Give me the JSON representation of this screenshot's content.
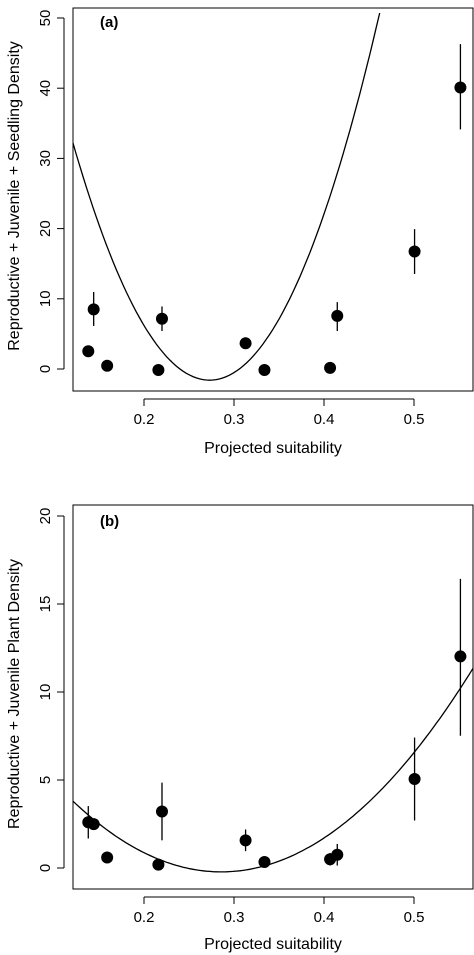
{
  "chart_data": [
    {
      "type": "scatter",
      "panel_label": "(a)",
      "xlabel": "Projected suitability",
      "ylabel": "Reproductive + Juvenile + Seedling Density",
      "xlim": [
        0.13,
        0.575
      ],
      "ylim": [
        -2,
        51
      ],
      "xticks": [
        "0.2",
        "0.3",
        "0.4",
        "0.5"
      ],
      "yticks": [
        "0",
        "10",
        "20",
        "30",
        "40",
        "50"
      ],
      "points": [
        {
          "x": 0.147,
          "y": 3.5,
          "lo": null,
          "hi": null
        },
        {
          "x": 0.153,
          "y": 9.3,
          "lo": 7.0,
          "hi": 11.7
        },
        {
          "x": 0.168,
          "y": 1.5,
          "lo": null,
          "hi": null
        },
        {
          "x": 0.225,
          "y": 0.9,
          "lo": null,
          "hi": null
        },
        {
          "x": 0.229,
          "y": 8.0,
          "lo": 6.3,
          "hi": 9.7
        },
        {
          "x": 0.322,
          "y": 4.6,
          "lo": null,
          "hi": null
        },
        {
          "x": 0.343,
          "y": 0.9,
          "lo": null,
          "hi": null
        },
        {
          "x": 0.416,
          "y": 1.2,
          "lo": null,
          "hi": null
        },
        {
          "x": 0.424,
          "y": 8.4,
          "lo": 6.3,
          "hi": 10.3
        },
        {
          "x": 0.51,
          "y": 17.3,
          "lo": 14.2,
          "hi": 20.4
        },
        {
          "x": 0.561,
          "y": 40.0,
          "lo": 34.2,
          "hi": 46.0
        }
      ],
      "fit": {
        "type": "quadratic",
        "vertex_x": 0.282,
        "vertex_y": -0.5,
        "a": 1420,
        "x_range": [
          0.13,
          0.575
        ]
      }
    },
    {
      "type": "scatter",
      "panel_label": "(b)",
      "xlabel": "Projected suitability",
      "ylabel": "Reproductive + Juvenile Plant Density",
      "xlim": [
        0.13,
        0.575
      ],
      "ylim": [
        -0.7,
        20.6
      ],
      "xticks": [
        "0.2",
        "0.3",
        "0.4",
        "0.5"
      ],
      "yticks": [
        "0",
        "5",
        "10",
        "15",
        "20"
      ],
      "points": [
        {
          "x": 0.147,
          "y": 3.0,
          "lo": 2.1,
          "hi": 3.9
        },
        {
          "x": 0.153,
          "y": 2.9,
          "lo": null,
          "hi": null
        },
        {
          "x": 0.168,
          "y": 1.05,
          "lo": null,
          "hi": null
        },
        {
          "x": 0.225,
          "y": 0.65,
          "lo": null,
          "hi": null
        },
        {
          "x": 0.229,
          "y": 3.6,
          "lo": 2.0,
          "hi": 5.2
        },
        {
          "x": 0.322,
          "y": 2.0,
          "lo": 1.4,
          "hi": 2.6
        },
        {
          "x": 0.343,
          "y": 0.8,
          "lo": null,
          "hi": null
        },
        {
          "x": 0.416,
          "y": 0.95,
          "lo": 0.6,
          "hi": 1.3
        },
        {
          "x": 0.424,
          "y": 1.2,
          "lo": 0.6,
          "hi": 1.8
        },
        {
          "x": 0.51,
          "y": 5.4,
          "lo": 3.1,
          "hi": 7.7
        },
        {
          "x": 0.561,
          "y": 12.2,
          "lo": 7.8,
          "hi": 16.5
        }
      ],
      "fit": {
        "type": "quadratic",
        "vertex_x": 0.295,
        "vertex_y": 0.25,
        "a": 144,
        "x_range": [
          0.13,
          0.575
        ]
      }
    }
  ]
}
